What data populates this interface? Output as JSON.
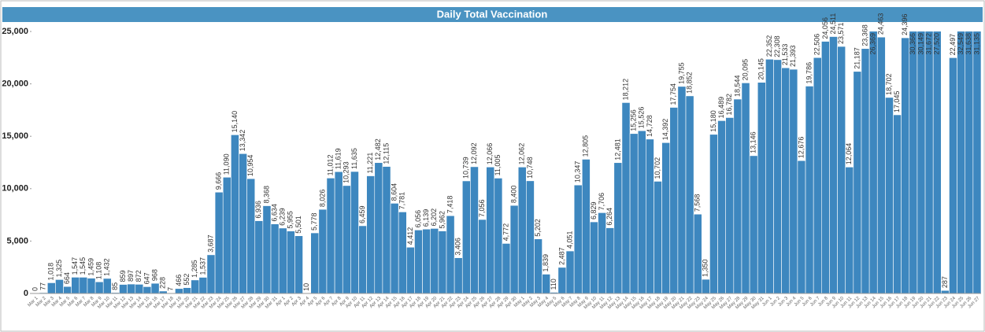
{
  "chart_data": {
    "type": "bar",
    "title": "Daily Total Vaccination",
    "color": "#3d87bf",
    "grid": false,
    "ylim": [
      0,
      25000
    ],
    "yticks": [
      0,
      {
        "value": 5000,
        "label": "5,000"
      },
      {
        "value": 10000,
        "label": "10,000"
      },
      {
        "value": 15000,
        "label": "15,000"
      },
      {
        "value": 20000,
        "label": "20,000"
      },
      {
        "value": 25000,
        "label": "25,000"
      }
    ],
    "categories": [
      "Mar 1",
      "Mar 2",
      "Mar 3",
      "Mar 4",
      "Mar 5",
      "Mar 6",
      "Mar 7",
      "Mar 8",
      "Mar 9",
      "Mar 10",
      "Mar 11",
      "Mar 12",
      "Mar 13",
      "Mar 14",
      "Mar 15",
      "Mar 16",
      "Mar 17",
      "Mar 18",
      "Mar 19",
      "Mar 20",
      "Mar 21",
      "Mar 22",
      "Mar 23",
      "Mar 24",
      "Mar 25",
      "Mar 26",
      "Mar 27",
      "Mar 28",
      "Mar 29",
      "Mar 30",
      "Mar 31",
      "Apr 1",
      "Apr 2",
      "Apr 3",
      "Apr 4",
      "Apr 5",
      "Apr 6",
      "Apr 7",
      "Apr 8",
      "Apr 9",
      "Apr 10",
      "Apr 11",
      "Apr 12",
      "Apr 13",
      "Apr 14",
      "Apr 15",
      "Apr 16",
      "Apr 17",
      "Apr 18",
      "Apr 19",
      "Apr 20",
      "Apr 21",
      "Apr 22",
      "Apr 23",
      "Apr 24",
      "Apr 25",
      "Apr 26",
      "Apr 27",
      "Apr 28",
      "Apr 29",
      "Apr 30",
      "May 1",
      "May 2",
      "May 3",
      "May 4",
      "May 5",
      "May 6",
      "May 7",
      "May 8",
      "May 9",
      "May 10",
      "May 11",
      "May 12",
      "May 13",
      "May 14",
      "May 15",
      "May 16",
      "May 17",
      "May 18",
      "May 19",
      "May 20",
      "May 21",
      "May 22",
      "May 23",
      "May 24",
      "May 25",
      "May 26",
      "May 27",
      "May 28",
      "May 29",
      "May 30",
      "May 31",
      "Jun 1",
      "Jun 2",
      "Jun 3",
      "Jun 4",
      "Jun 5",
      "Jun 6",
      "Jun 7",
      "Jun 8",
      "Jun 9",
      "Jun 10",
      "Jun 11",
      "Jun 12",
      "Jun 13",
      "Jun 14",
      "Jun 15",
      "Jun 16",
      "Jun 17",
      "Jun 18",
      "Jun 19",
      "Jun 20",
      "Jun 21",
      "Jun 22",
      "Jun 23",
      "Jun 24",
      "Jun 25",
      "Jun 26",
      "Jun 27"
    ],
    "values": [
      0,
      77,
      1018,
      1325,
      664,
      1547,
      1545,
      1459,
      1108,
      1432,
      85,
      859,
      897,
      872,
      647,
      968,
      228,
      7,
      466,
      552,
      1285,
      1537,
      3687,
      9666,
      11090,
      15140,
      13342,
      10954,
      6936,
      8368,
      6634,
      6239,
      5955,
      5501,
      10,
      5778,
      8026,
      11012,
      11619,
      10293,
      11635,
      6459,
      11221,
      12482,
      12115,
      8604,
      7781,
      4412,
      6056,
      6139,
      6202,
      5962,
      7418,
      3406,
      10739,
      12092,
      7056,
      12066,
      11005,
      4772,
      8400,
      12062,
      10748,
      5202,
      1839,
      110,
      2487,
      4051,
      10347,
      12805,
      6829,
      7706,
      6264,
      12481,
      18212,
      15256,
      15526,
      14728,
      10702,
      14392,
      17754,
      19755,
      18852,
      7568,
      1350,
      15180,
      16489,
      16782,
      18544,
      20095,
      13146,
      20145,
      22352,
      22308,
      21533,
      21393,
      12676,
      19786,
      22506,
      24056,
      24511,
      23571,
      12064,
      21187,
      23368,
      26369,
      24463,
      18702,
      17045,
      24396,
      30366,
      30149,
      31672,
      27520,
      287,
      22497,
      32549,
      31638,
      31135
    ],
    "value_labels": [
      "0",
      "77",
      "1,018",
      "1,325",
      "664",
      "1,547",
      "1,545",
      "1,459",
      "1,108",
      "1,432",
      "85",
      "859",
      "897",
      "872",
      "647",
      "968",
      "228",
      "7",
      "466",
      "552",
      "1,285",
      "1,537",
      "3,687",
      "9,666",
      "11,090",
      "15,140",
      "13,342",
      "10,954",
      "6,936",
      "8,368",
      "6,634",
      "6,239",
      "5,955",
      "5,501",
      "10",
      "5,778",
      "8,026",
      "11,012",
      "11,619",
      "10,293",
      "11,635",
      "6,459",
      "11,221",
      "12,482",
      "12,115",
      "8,604",
      "7,781",
      "4,412",
      "6,056",
      "6,139",
      "6,202",
      "5,962",
      "7,418",
      "3,406",
      "10,739",
      "12,092",
      "7,056",
      "12,066",
      "11,005",
      "4,772",
      "8,400",
      "12,062",
      "10,748",
      "5,202",
      "1,839",
      "110",
      "2,487",
      "4,051",
      "10,347",
      "12,805",
      "6,829",
      "7,706",
      "6,264",
      "12,481",
      "18,212",
      "15,256",
      "15,526",
      "14,728",
      "10,702",
      "14,392",
      "17,754",
      "19,755",
      "18,852",
      "7,568",
      "1,350",
      "15,180",
      "16,489",
      "16,782",
      "18,544",
      "20,095",
      "13,146",
      "20,145",
      "22,352",
      "22,308",
      "21,533",
      "21,393",
      "12,676",
      "19,786",
      "22,506",
      "24,056",
      "24,511",
      "23,571",
      "12,064",
      "21,187",
      "23,368",
      "26,369",
      "24,463",
      "18,702",
      "17,045",
      "24,396",
      "30,366",
      "30,149",
      "31,672",
      "27,520",
      "287",
      "22,497",
      "32,549",
      "31,638",
      "31,135"
    ]
  }
}
